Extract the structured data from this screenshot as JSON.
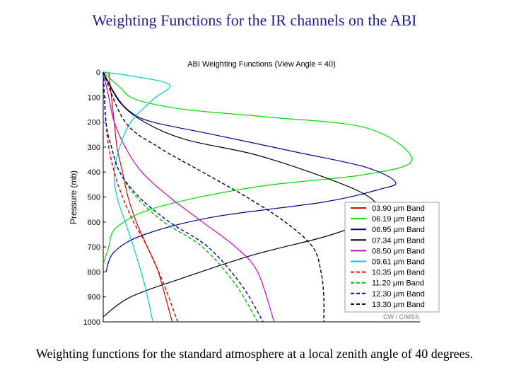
{
  "slide": {
    "title": "Weighting Functions for the IR channels on the ABI",
    "caption": "Weighting functions for the standard atmosphere at a local zenith angle of 40 degrees."
  },
  "chart_data": {
    "type": "line",
    "title": "ABI Weighting Functions  (View Angle = 40)",
    "xlabel": "",
    "ylabel": "Pressure (mb)",
    "ylim": [
      0,
      1000
    ],
    "y_reversed": true,
    "yticks": [
      0,
      100,
      200,
      300,
      400,
      500,
      600,
      700,
      800,
      900,
      1000
    ],
    "xlim": [
      0,
      1
    ],
    "credit": "CW / CIMSS",
    "legend_position": "right",
    "series": [
      {
        "name": "03.90 μm Band",
        "color": "#e00000",
        "dash": "solid",
        "x": [
          0.02,
          0.03,
          0.04,
          0.05,
          0.07,
          0.09,
          0.12,
          0.16,
          0.2,
          0.25
        ],
        "y": [
          0,
          100,
          200,
          300,
          400,
          500,
          600,
          700,
          800,
          1000
        ]
      },
      {
        "name": "06.19 μm Band",
        "color": "#00dd00",
        "dash": "solid",
        "x": [
          0.0,
          0.06,
          0.12,
          0.3,
          0.6,
          0.96,
          1.12,
          0.95,
          0.55,
          0.2,
          0.05,
          0.02,
          0.0
        ],
        "y": [
          0,
          60,
          110,
          150,
          180,
          225,
          350,
          410,
          460,
          540,
          620,
          700,
          770
        ]
      },
      {
        "name": "06.95 μm Band",
        "color": "#000099",
        "dash": "solid",
        "x": [
          0.0,
          0.05,
          0.1,
          0.18,
          0.4,
          0.7,
          0.95,
          1.06,
          1.0,
          0.8,
          0.4,
          0.15,
          0.04,
          0.01
        ],
        "y": [
          0,
          100,
          160,
          200,
          250,
          320,
          380,
          440,
          470,
          520,
          580,
          650,
          720,
          800
        ]
      },
      {
        "name": "07.34 μm Band",
        "color": "#000000",
        "dash": "solid",
        "x": [
          0.0,
          0.06,
          0.15,
          0.3,
          0.55,
          0.8,
          0.95,
          1.0,
          0.95,
          0.8,
          0.55,
          0.3,
          0.1,
          0.0
        ],
        "y": [
          0,
          120,
          200,
          270,
          330,
          420,
          490,
          550,
          600,
          660,
          730,
          820,
          900,
          980
        ]
      },
      {
        "name": "08.50 μm Band",
        "color": "#cc00cc",
        "dash": "solid",
        "x": [
          0.0,
          0.02,
          0.04,
          0.08,
          0.14,
          0.24,
          0.36,
          0.48,
          0.56,
          0.62
        ],
        "y": [
          0,
          100,
          200,
          300,
          400,
          500,
          600,
          700,
          800,
          1000
        ]
      },
      {
        "name": "09.61 μm Band",
        "color": "#00cccc",
        "dash": "solid",
        "x": [
          0.0,
          0.1,
          0.24,
          0.18,
          0.1,
          0.06,
          0.04,
          0.05,
          0.08,
          0.11,
          0.15,
          0.18
        ],
        "y": [
          0,
          15,
          50,
          110,
          200,
          300,
          400,
          500,
          600,
          700,
          850,
          1000
        ]
      },
      {
        "name": "10.35 μm Band",
        "color": "#dd0000",
        "dash": "dashed",
        "x": [
          0.0,
          0.01,
          0.02,
          0.04,
          0.07,
          0.11,
          0.16,
          0.22,
          0.27
        ],
        "y": [
          0,
          200,
          300,
          400,
          500,
          600,
          700,
          850,
          1000
        ]
      },
      {
        "name": "11.20 μm Band",
        "color": "#00bb00",
        "dash": "dashed",
        "x": [
          0.0,
          0.01,
          0.03,
          0.06,
          0.12,
          0.22,
          0.36,
          0.48,
          0.56
        ],
        "y": [
          0,
          200,
          300,
          400,
          500,
          600,
          700,
          850,
          1000
        ]
      },
      {
        "name": "12.30 μm Band",
        "color": "#0000cc",
        "dash": "dashed",
        "x": [
          0.0,
          0.01,
          0.03,
          0.06,
          0.13,
          0.24,
          0.38,
          0.5,
          0.58
        ],
        "y": [
          0,
          200,
          300,
          400,
          500,
          600,
          700,
          850,
          1000
        ]
      },
      {
        "name": "13.30 μm Band",
        "color": "#000000",
        "dash": "dashed",
        "x": [
          0.0,
          0.08,
          0.2,
          0.36,
          0.52,
          0.66,
          0.76,
          0.79,
          0.8,
          0.8
        ],
        "y": [
          0,
          200,
          300,
          400,
          500,
          600,
          700,
          800,
          900,
          1000
        ]
      }
    ]
  }
}
